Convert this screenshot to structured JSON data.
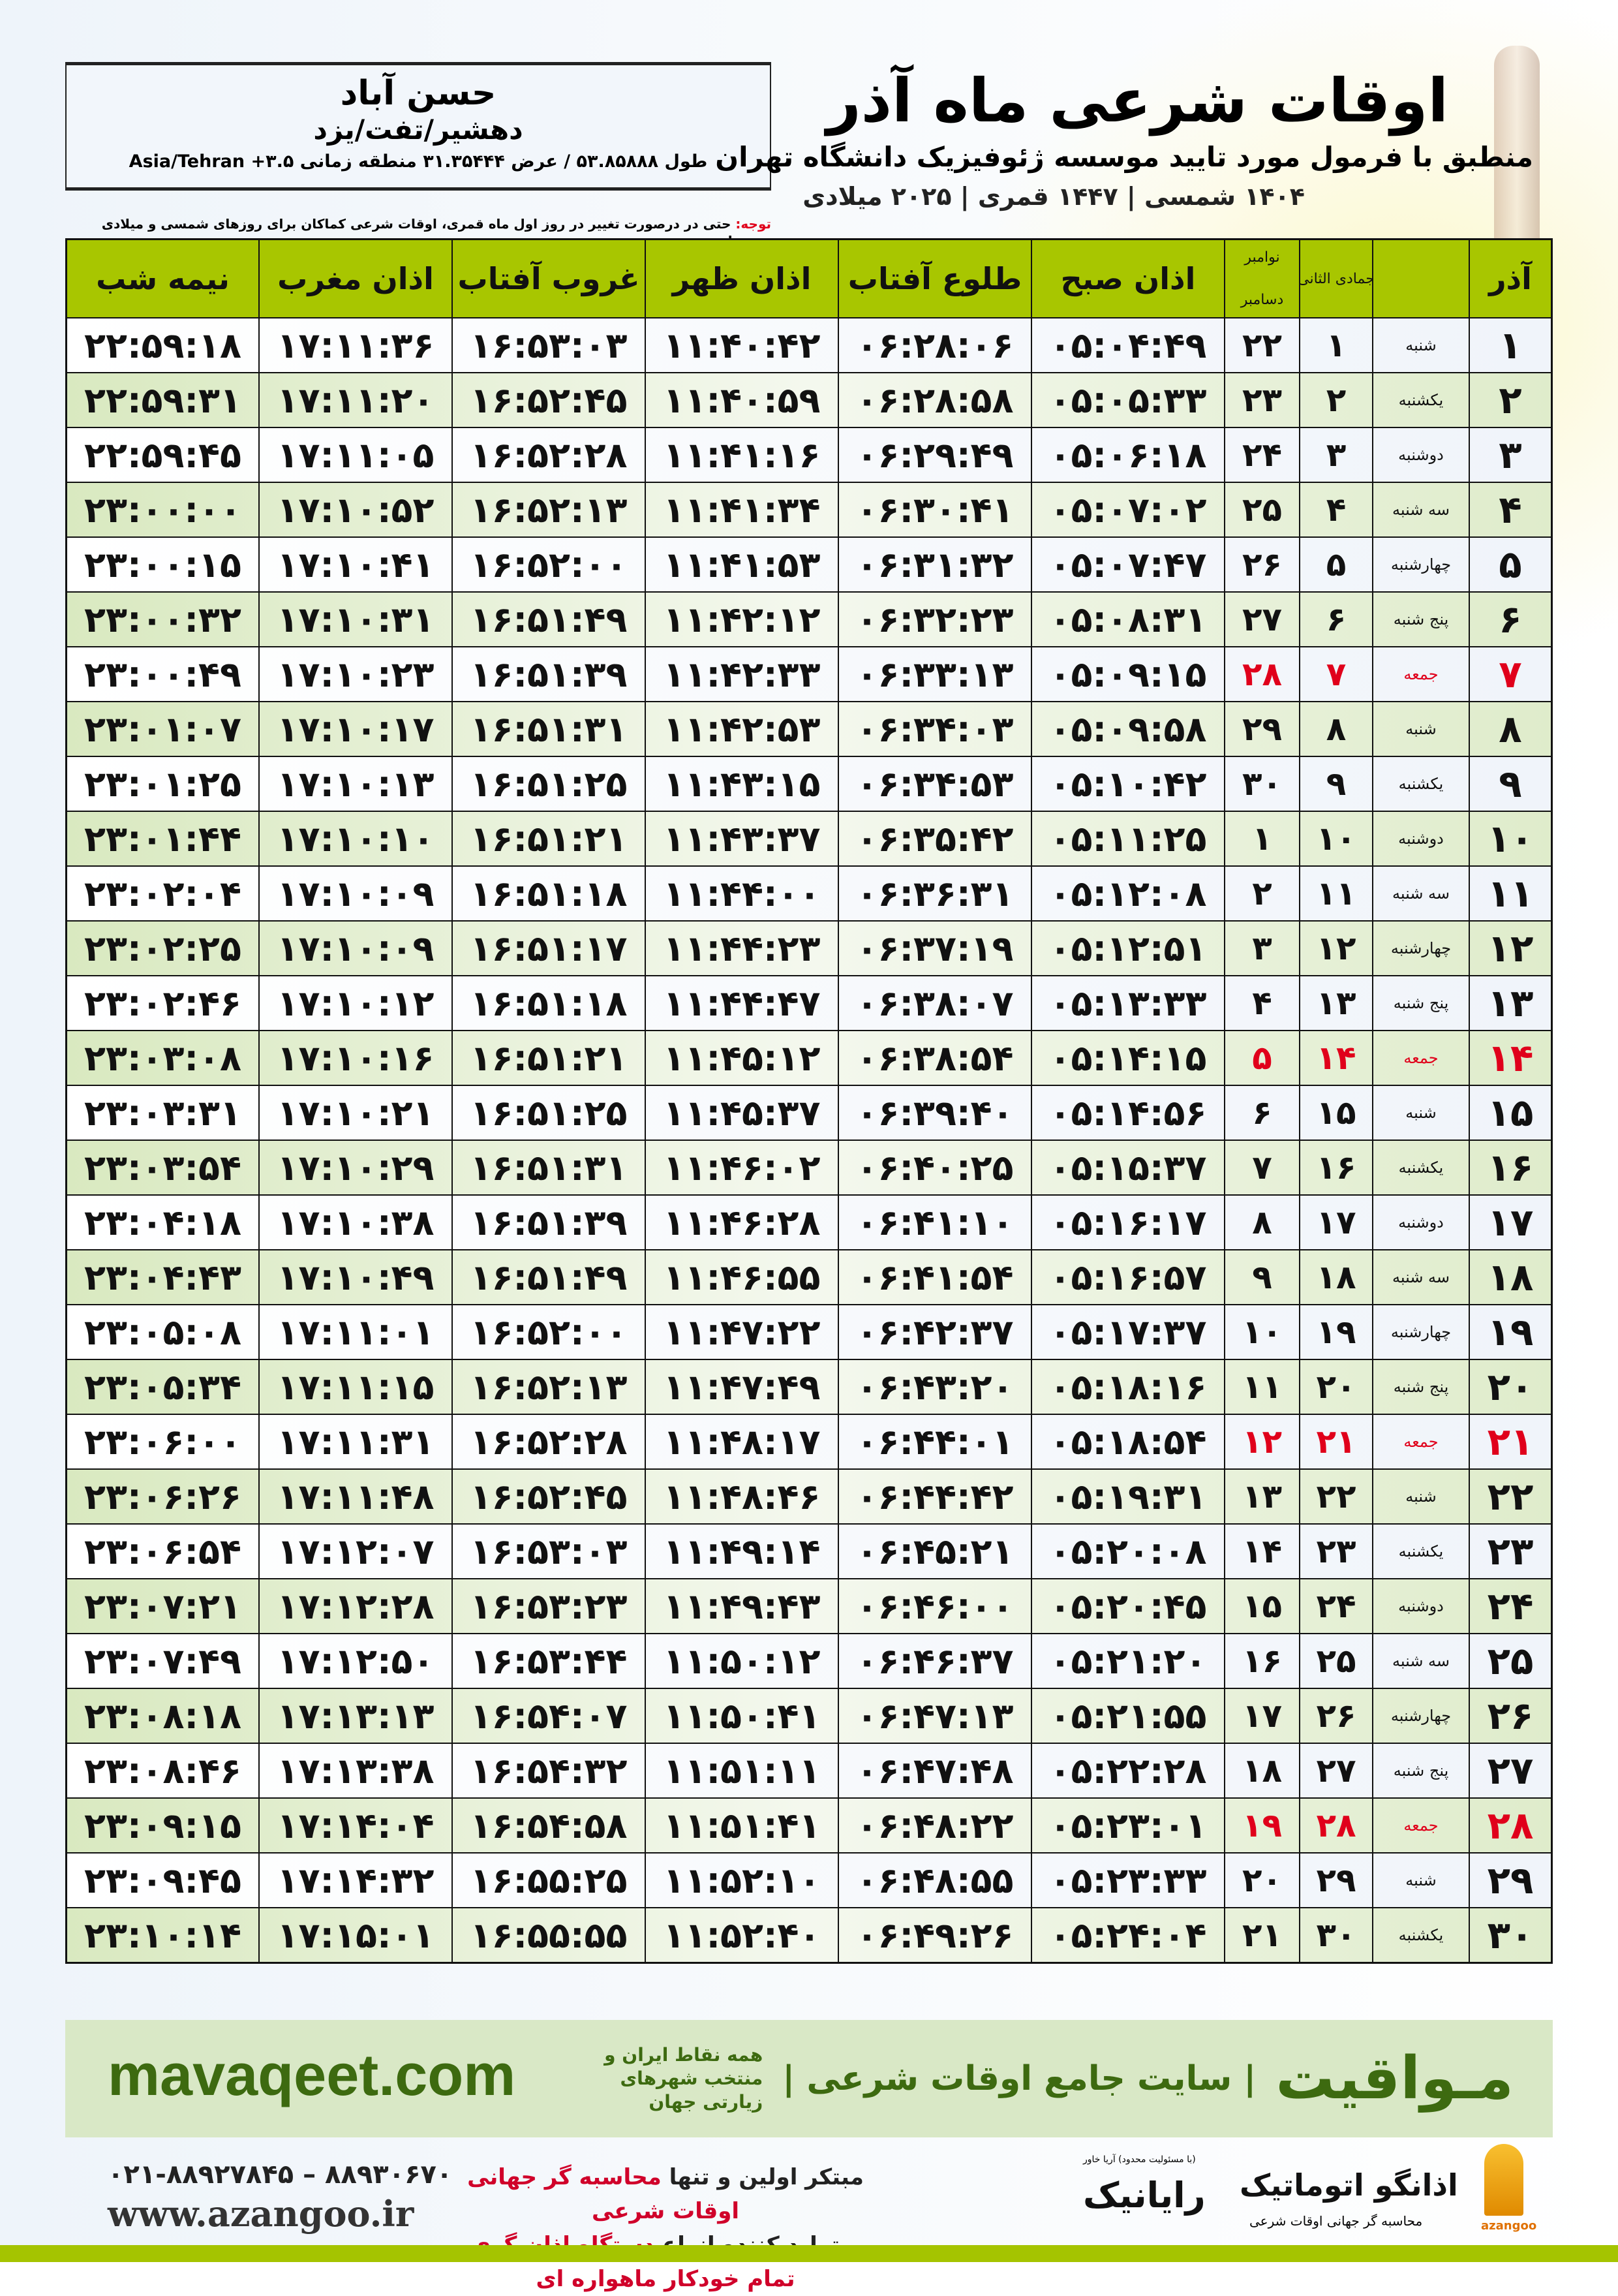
{
  "location": {
    "name": "حسن آباد",
    "region": "دهشیر/تفت/یزد",
    "coords": "طول ۵۳.۸۵۸۸۸ / عرض ۳۱.۳۵۴۴۴ منطقه زمانی ۳.۵+ Asia/Tehran"
  },
  "header": {
    "title": "اوقات شرعی ماه آذر",
    "subtitle": "منطبق با فرمول مورد تایید موسسه ژئوفیزیک دانشگاه تهران",
    "years": "۱۴۰۴ شمسی | ۱۴۴۷ قمری | ۲۰۲۵ میلادی"
  },
  "note": {
    "label": "توجه:",
    "text": " حتی در درصورت تغییر در روز اول ماه قمری، اوقات شرعی کماکان برای روزهای شمسی و میلادی معتبر است."
  },
  "colors": {
    "header_green": "#a8c600",
    "holiday_red": "#e0001b",
    "brand_green": "#3d6a10"
  },
  "table": {
    "headers": [
      "آذر",
      "",
      "جمادی الثانی",
      "نوامبر",
      "دسامبر",
      "اذان صبح",
      "طلوع آفتاب",
      "اذان ظهر",
      "غروب آفتاب",
      "اذان مغرب",
      "نیمه شب"
    ],
    "rows": [
      [
        "۱",
        "شنبه",
        "۱",
        "۲۲",
        "۰۵:۰۴:۴۹",
        "۰۶:۲۸:۰۶",
        "۱۱:۴۰:۴۲",
        "۱۶:۵۳:۰۳",
        "۱۷:۱۱:۳۶",
        "۲۲:۵۹:۱۸",
        false
      ],
      [
        "۲",
        "یکشنبه",
        "۲",
        "۲۳",
        "۰۵:۰۵:۳۳",
        "۰۶:۲۸:۵۸",
        "۱۱:۴۰:۵۹",
        "۱۶:۵۲:۴۵",
        "۱۷:۱۱:۲۰",
        "۲۲:۵۹:۳۱",
        false
      ],
      [
        "۳",
        "دوشنبه",
        "۳",
        "۲۴",
        "۰۵:۰۶:۱۸",
        "۰۶:۲۹:۴۹",
        "۱۱:۴۱:۱۶",
        "۱۶:۵۲:۲۸",
        "۱۷:۱۱:۰۵",
        "۲۲:۵۹:۴۵",
        false
      ],
      [
        "۴",
        "سه شنبه",
        "۴",
        "۲۵",
        "۰۵:۰۷:۰۲",
        "۰۶:۳۰:۴۱",
        "۱۱:۴۱:۳۴",
        "۱۶:۵۲:۱۳",
        "۱۷:۱۰:۵۲",
        "۲۳:۰۰:۰۰",
        false
      ],
      [
        "۵",
        "چهارشنبه",
        "۵",
        "۲۶",
        "۰۵:۰۷:۴۷",
        "۰۶:۳۱:۳۲",
        "۱۱:۴۱:۵۳",
        "۱۶:۵۲:۰۰",
        "۱۷:۱۰:۴۱",
        "۲۳:۰۰:۱۵",
        false
      ],
      [
        "۶",
        "پنج شنبه",
        "۶",
        "۲۷",
        "۰۵:۰۸:۳۱",
        "۰۶:۳۲:۲۳",
        "۱۱:۴۲:۱۲",
        "۱۶:۵۱:۴۹",
        "۱۷:۱۰:۳۱",
        "۲۳:۰۰:۳۲",
        false
      ],
      [
        "۷",
        "جمعه",
        "۷",
        "۲۸",
        "۰۵:۰۹:۱۵",
        "۰۶:۳۳:۱۳",
        "۱۱:۴۲:۳۳",
        "۱۶:۵۱:۳۹",
        "۱۷:۱۰:۲۳",
        "۲۳:۰۰:۴۹",
        true
      ],
      [
        "۸",
        "شنبه",
        "۸",
        "۲۹",
        "۰۵:۰۹:۵۸",
        "۰۶:۳۴:۰۳",
        "۱۱:۴۲:۵۳",
        "۱۶:۵۱:۳۱",
        "۱۷:۱۰:۱۷",
        "۲۳:۰۱:۰۷",
        false
      ],
      [
        "۹",
        "یکشنبه",
        "۹",
        "۳۰",
        "۰۵:۱۰:۴۲",
        "۰۶:۳۴:۵۳",
        "۱۱:۴۳:۱۵",
        "۱۶:۵۱:۲۵",
        "۱۷:۱۰:۱۳",
        "۲۳:۰۱:۲۵",
        false
      ],
      [
        "۱۰",
        "دوشنبه",
        "۱۰",
        "۱",
        "۰۵:۱۱:۲۵",
        "۰۶:۳۵:۴۲",
        "۱۱:۴۳:۳۷",
        "۱۶:۵۱:۲۱",
        "۱۷:۱۰:۱۰",
        "۲۳:۰۱:۴۴",
        false
      ],
      [
        "۱۱",
        "سه شنبه",
        "۱۱",
        "۲",
        "۰۵:۱۲:۰۸",
        "۰۶:۳۶:۳۱",
        "۱۱:۴۴:۰۰",
        "۱۶:۵۱:۱۸",
        "۱۷:۱۰:۰۹",
        "۲۳:۰۲:۰۴",
        false
      ],
      [
        "۱۲",
        "چهارشنبه",
        "۱۲",
        "۳",
        "۰۵:۱۲:۵۱",
        "۰۶:۳۷:۱۹",
        "۱۱:۴۴:۲۳",
        "۱۶:۵۱:۱۷",
        "۱۷:۱۰:۰۹",
        "۲۳:۰۲:۲۵",
        false
      ],
      [
        "۱۳",
        "پنج شنبه",
        "۱۳",
        "۴",
        "۰۵:۱۳:۳۳",
        "۰۶:۳۸:۰۷",
        "۱۱:۴۴:۴۷",
        "۱۶:۵۱:۱۸",
        "۱۷:۱۰:۱۲",
        "۲۳:۰۲:۴۶",
        false
      ],
      [
        "۱۴",
        "جمعه",
        "۱۴",
        "۵",
        "۰۵:۱۴:۱۵",
        "۰۶:۳۸:۵۴",
        "۱۱:۴۵:۱۲",
        "۱۶:۵۱:۲۱",
        "۱۷:۱۰:۱۶",
        "۲۳:۰۳:۰۸",
        true
      ],
      [
        "۱۵",
        "شنبه",
        "۱۵",
        "۶",
        "۰۵:۱۴:۵۶",
        "۰۶:۳۹:۴۰",
        "۱۱:۴۵:۳۷",
        "۱۶:۵۱:۲۵",
        "۱۷:۱۰:۲۱",
        "۲۳:۰۳:۳۱",
        false
      ],
      [
        "۱۶",
        "یکشنبه",
        "۱۶",
        "۷",
        "۰۵:۱۵:۳۷",
        "۰۶:۴۰:۲۵",
        "۱۱:۴۶:۰۲",
        "۱۶:۵۱:۳۱",
        "۱۷:۱۰:۲۹",
        "۲۳:۰۳:۵۴",
        false
      ],
      [
        "۱۷",
        "دوشنبه",
        "۱۷",
        "۸",
        "۰۵:۱۶:۱۷",
        "۰۶:۴۱:۱۰",
        "۱۱:۴۶:۲۸",
        "۱۶:۵۱:۳۹",
        "۱۷:۱۰:۳۸",
        "۲۳:۰۴:۱۸",
        false
      ],
      [
        "۱۸",
        "سه شنبه",
        "۱۸",
        "۹",
        "۰۵:۱۶:۵۷",
        "۰۶:۴۱:۵۴",
        "۱۱:۴۶:۵۵",
        "۱۶:۵۱:۴۹",
        "۱۷:۱۰:۴۹",
        "۲۳:۰۴:۴۳",
        false
      ],
      [
        "۱۹",
        "چهارشنبه",
        "۱۹",
        "۱۰",
        "۰۵:۱۷:۳۷",
        "۰۶:۴۲:۳۷",
        "۱۱:۴۷:۲۲",
        "۱۶:۵۲:۰۰",
        "۱۷:۱۱:۰۱",
        "۲۳:۰۵:۰۸",
        false
      ],
      [
        "۲۰",
        "پنج شنبه",
        "۲۰",
        "۱۱",
        "۰۵:۱۸:۱۶",
        "۰۶:۴۳:۲۰",
        "۱۱:۴۷:۴۹",
        "۱۶:۵۲:۱۳",
        "۱۷:۱۱:۱۵",
        "۲۳:۰۵:۳۴",
        false
      ],
      [
        "۲۱",
        "جمعه",
        "۲۱",
        "۱۲",
        "۰۵:۱۸:۵۴",
        "۰۶:۴۴:۰۱",
        "۱۱:۴۸:۱۷",
        "۱۶:۵۲:۲۸",
        "۱۷:۱۱:۳۱",
        "۲۳:۰۶:۰۰",
        true
      ],
      [
        "۲۲",
        "شنبه",
        "۲۲",
        "۱۳",
        "۰۵:۱۹:۳۱",
        "۰۶:۴۴:۴۲",
        "۱۱:۴۸:۴۶",
        "۱۶:۵۲:۴۵",
        "۱۷:۱۱:۴۸",
        "۲۳:۰۶:۲۶",
        false
      ],
      [
        "۲۳",
        "یکشنبه",
        "۲۳",
        "۱۴",
        "۰۵:۲۰:۰۸",
        "۰۶:۴۵:۲۱",
        "۱۱:۴۹:۱۴",
        "۱۶:۵۳:۰۳",
        "۱۷:۱۲:۰۷",
        "۲۳:۰۶:۵۴",
        false
      ],
      [
        "۲۴",
        "دوشنبه",
        "۲۴",
        "۱۵",
        "۰۵:۲۰:۴۵",
        "۰۶:۴۶:۰۰",
        "۱۱:۴۹:۴۳",
        "۱۶:۵۳:۲۳",
        "۱۷:۱۲:۲۸",
        "۲۳:۰۷:۲۱",
        false
      ],
      [
        "۲۵",
        "سه شنبه",
        "۲۵",
        "۱۶",
        "۰۵:۲۱:۲۰",
        "۰۶:۴۶:۳۷",
        "۱۱:۵۰:۱۲",
        "۱۶:۵۳:۴۴",
        "۱۷:۱۲:۵۰",
        "۲۳:۰۷:۴۹",
        false
      ],
      [
        "۲۶",
        "چهارشنبه",
        "۲۶",
        "۱۷",
        "۰۵:۲۱:۵۵",
        "۰۶:۴۷:۱۳",
        "۱۱:۵۰:۴۱",
        "۱۶:۵۴:۰۷",
        "۱۷:۱۳:۱۳",
        "۲۳:۰۸:۱۸",
        false
      ],
      [
        "۲۷",
        "پنج شنبه",
        "۲۷",
        "۱۸",
        "۰۵:۲۲:۲۸",
        "۰۶:۴۷:۴۸",
        "۱۱:۵۱:۱۱",
        "۱۶:۵۴:۳۲",
        "۱۷:۱۳:۳۸",
        "۲۳:۰۸:۴۶",
        false
      ],
      [
        "۲۸",
        "جمعه",
        "۲۸",
        "۱۹",
        "۰۵:۲۳:۰۱",
        "۰۶:۴۸:۲۲",
        "۱۱:۵۱:۴۱",
        "۱۶:۵۴:۵۸",
        "۱۷:۱۴:۰۴",
        "۲۳:۰۹:۱۵",
        true
      ],
      [
        "۲۹",
        "شنبه",
        "۲۹",
        "۲۰",
        "۰۵:۲۳:۳۳",
        "۰۶:۴۸:۵۵",
        "۱۱:۵۲:۱۰",
        "۱۶:۵۵:۲۵",
        "۱۷:۱۴:۳۲",
        "۲۳:۰۹:۴۵",
        false
      ],
      [
        "۳۰",
        "یکشنبه",
        "۳۰",
        "۲۱",
        "۰۵:۲۴:۰۴",
        "۰۶:۴۹:۲۶",
        "۱۱:۵۲:۴۰",
        "۱۶:۵۵:۵۵",
        "۱۷:۱۵:۰۱",
        "۲۳:۱۰:۱۴",
        false
      ]
    ]
  },
  "footer": {
    "brand": "مـواقیت",
    "tagline": "| سایت جامع اوقات شرعی |",
    "tagline_sub": "همه نقاط ایران و منتخب شهرهای زیارتی جهان",
    "site": "mavaqeet.com",
    "phone": "۰۲۱-۸۸۹۲۷۸۴۵ – ۸۸۹۳۰۶۷۰",
    "www": "www.azangoo.ir",
    "promo1a": "مبتکر اولین و تنها ",
    "promo1b": "محاسبه گر جهانی اوقات شرعی",
    "promo2a": "و تولید کننده انواع ",
    "promo2b": "دستگاه اذان گوی تمام خودکار ماهواره ای",
    "raianik": "رایانیک",
    "raianik_sub": "(با مسئولیت محدود) آریا خاور",
    "azangoo": "اذانگو اتوماتیک",
    "azangoo_sub": "محاسبه گر جهانی اوقات شرعی",
    "azangoo_logo": "azangoo"
  }
}
